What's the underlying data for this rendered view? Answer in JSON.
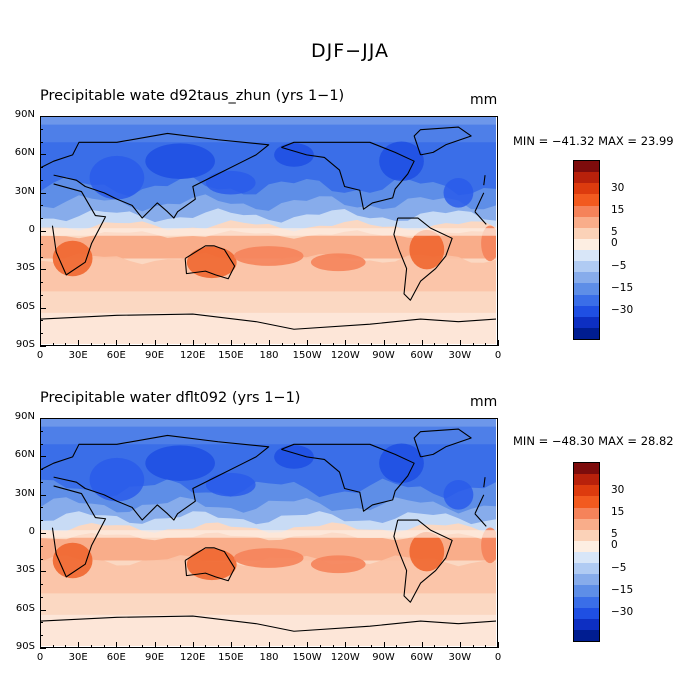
{
  "title": "DJF−JJA",
  "panels": [
    {
      "name": "top",
      "title": "Precipitable wate d92taus_zhun (yrs 1−1)",
      "units": "mm",
      "stats": "MIN = −41.32 MAX =  23.99"
    },
    {
      "name": "bottom",
      "title": "Precipitable water   dflt092 (yrs 1−1)",
      "units": "mm",
      "stats": "MIN = −48.30 MAX =  28.82"
    }
  ],
  "axes": {
    "lat_labels": [
      "90N",
      "60N",
      "30N",
      "0",
      "30S",
      "60S",
      "90S"
    ],
    "lon_labels": [
      "0",
      "30E",
      "60E",
      "90E",
      "120E",
      "150E",
      "180",
      "150W",
      "120W",
      "90W",
      "60W",
      "30W",
      "0"
    ]
  },
  "colorbar": {
    "labels": [
      "30",
      "15",
      "5",
      "0",
      "−5",
      "−15",
      "−30"
    ],
    "colors": [
      "#7d0c0c",
      "#b8210b",
      "#dd3b0e",
      "#f25a1f",
      "#f5835a",
      "#f9ad8a",
      "#fbd2b8",
      "#fdeee2",
      "#d8e6f8",
      "#b0cbf3",
      "#87aceb",
      "#5e8ee7",
      "#3a6ee8",
      "#1f4fe3",
      "#0d2fc2",
      "#001d91"
    ]
  }
}
